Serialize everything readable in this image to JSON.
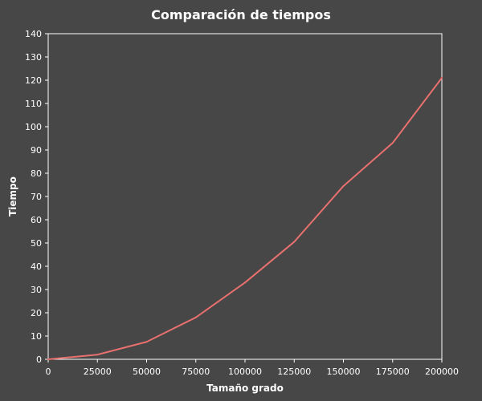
{
  "chart_data": {
    "type": "line",
    "title": "Comparación de tiempos",
    "xlabel": "Tamaño grado",
    "ylabel": "Tiempo",
    "xlim": [
      0,
      200000
    ],
    "ylim": [
      0,
      140
    ],
    "x_ticks": [
      0,
      25000,
      50000,
      75000,
      100000,
      125000,
      150000,
      175000,
      200000
    ],
    "y_ticks": [
      0,
      10,
      20,
      30,
      40,
      50,
      60,
      70,
      80,
      90,
      100,
      110,
      120,
      130,
      140
    ],
    "x_tick_labels": [
      "0",
      "25000",
      "50000",
      "75000",
      "100000",
      "125000",
      "150000",
      "175000",
      "200000"
    ],
    "y_tick_labels": [
      "0",
      "10",
      "20",
      "30",
      "40",
      "50",
      "60",
      "70",
      "80",
      "90",
      "100",
      "110",
      "120",
      "130",
      "140"
    ],
    "grid": false,
    "legend": "none",
    "series": [
      {
        "color": "#e8706e",
        "x": [
          0,
          25000,
          50000,
          75000,
          100000,
          125000,
          150000,
          175000,
          200000
        ],
        "y": [
          0,
          2,
          7.5,
          18,
          33,
          50.5,
          74.5,
          93,
          121
        ]
      }
    ]
  },
  "colors": {
    "background": "#474747",
    "axis": "#ffffff",
    "text": "#ffffff"
  }
}
